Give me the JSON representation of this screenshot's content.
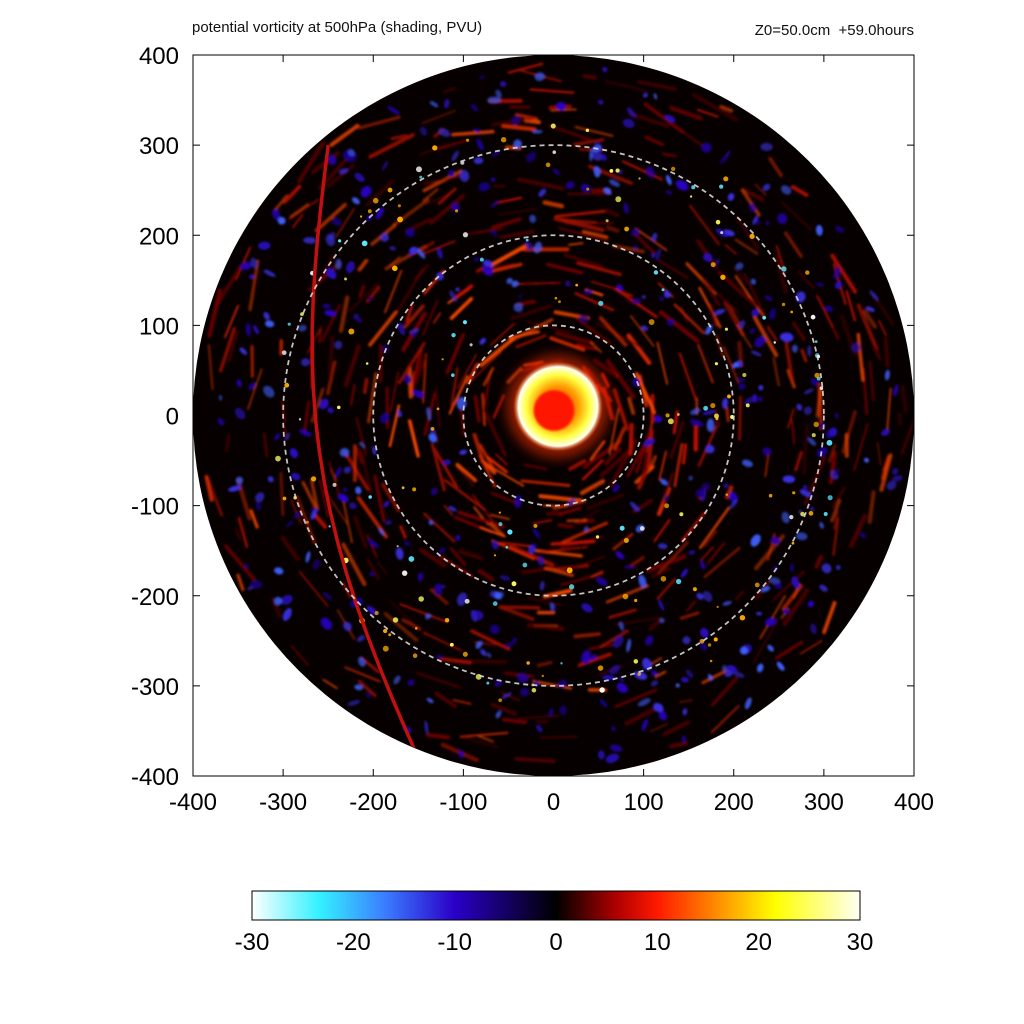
{
  "chart_data": {
    "type": "heatmap",
    "title": "potential vorticity at 500hPa (shading, PVU)",
    "subtitle": "Z0=50.0cm  +59.0hours",
    "xlim": [
      -400,
      400
    ],
    "ylim": [
      -400,
      400
    ],
    "x_ticks": [
      -400,
      -300,
      -200,
      -100,
      0,
      100,
      200,
      300,
      400
    ],
    "y_ticks": [
      -400,
      -300,
      -200,
      -100,
      0,
      100,
      200,
      300,
      400
    ],
    "x_tick_labels": [
      "-400",
      "-300",
      "-200",
      "-100",
      "0",
      "100",
      "200",
      "300",
      "400"
    ],
    "y_tick_labels": [
      "400",
      "300",
      "200",
      "100",
      "0",
      "-100",
      "-200",
      "-300",
      "-400"
    ],
    "domain_radius": 400,
    "reference_circle_radii": [
      100,
      200,
      300
    ],
    "core": {
      "center": [
        5,
        10
      ],
      "radius": 50,
      "peak_pv": 30
    },
    "colorbar": {
      "min": -30,
      "max": 30,
      "ticks": [
        -30,
        -20,
        -10,
        0,
        10,
        20,
        30
      ],
      "tick_labels": [
        "-30",
        "-20",
        "-10",
        "0",
        "10",
        "20",
        "30"
      ],
      "colors": [
        "#ffffff",
        "#33f2ff",
        "#3a7cff",
        "#2a00c8",
        "#000000",
        "#b00000",
        "#ff1a00",
        "#ff9f00",
        "#ffff00",
        "#fffff4"
      ]
    },
    "grid": false,
    "legend": "colorbar bottom"
  }
}
